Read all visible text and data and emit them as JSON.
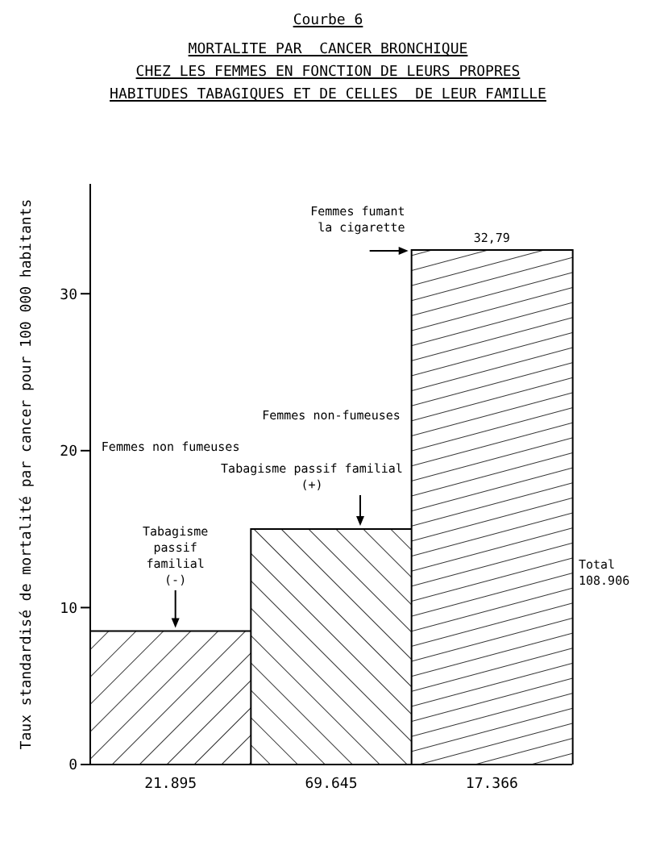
{
  "chart_data": {
    "type": "bar",
    "title": "Courbe 6",
    "subtitle": "MORTALITE PAR  CANCER BRONCHIQUE\nCHEZ LES FEMMES EN FONCTION DE LEURS PROPRES\nHABITUDES TABAGIQUES ET DE CELLES  DE LEUR FAMILLE",
    "ylabel": "Taux standardisé de mortalité par cancer pour 100 000 habitants",
    "categories": [
      "21.895",
      "69.645",
      "17.366"
    ],
    "values": [
      8.5,
      15,
      32.79
    ],
    "color": "#000000",
    "value_labels": [
      null,
      null,
      "32,79"
    ],
    "ylim": [
      0,
      37
    ],
    "yticks": [
      0,
      10,
      20,
      30
    ],
    "grid": false,
    "annotations": [
      "Femmes non fumeuses",
      "Tabagisme\npassif\nfamilial\n(-)",
      "Femmes non-fumeuses",
      "Tabagisme passif familial\n(+)",
      "Femmes fumant\nla cigarette",
      "Total\n108.906"
    ]
  }
}
